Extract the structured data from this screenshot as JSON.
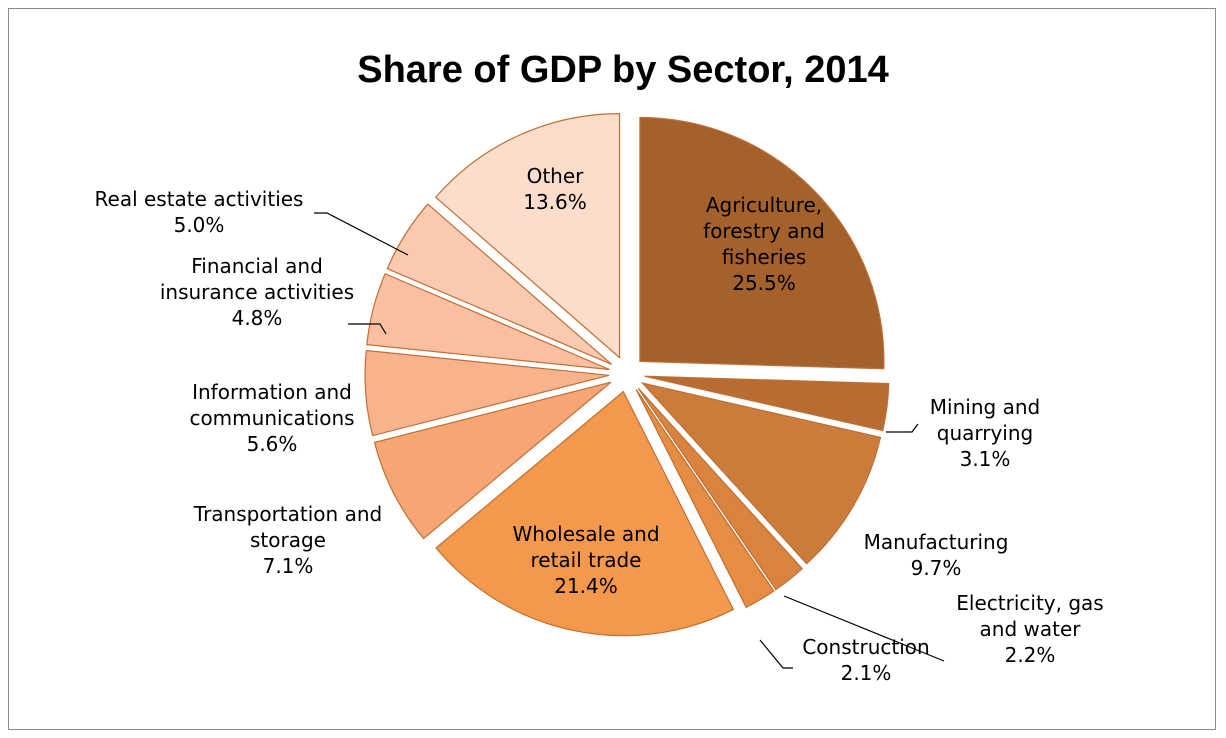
{
  "chart_data": {
    "type": "pie",
    "title": "Share of GDP by Sector, 2014",
    "slices": [
      {
        "name": "Agriculture, forestry and fisheries",
        "value": 25.5,
        "pct_label": "25.5%",
        "label_lines": [
          "Agriculture,",
          "forestry and",
          "fisheries"
        ],
        "color": "#a5612b"
      },
      {
        "name": "Mining and quarrying",
        "value": 3.1,
        "pct_label": "3.1%",
        "label_lines": [
          "Mining and",
          "quarrying"
        ],
        "color": "#b86c32"
      },
      {
        "name": "Manufacturing",
        "value": 9.7,
        "pct_label": "9.7%",
        "label_lines": [
          "Manufacturing"
        ],
        "color": "#cb7b3a"
      },
      {
        "name": "Electricity, gas and water",
        "value": 2.2,
        "pct_label": "2.2%",
        "label_lines": [
          "Electricity, gas",
          "and water"
        ],
        "color": "#d8833e"
      },
      {
        "name": "Construction",
        "value": 2.1,
        "pct_label": "2.1%",
        "label_lines": [
          "Construction"
        ],
        "color": "#e58d42"
      },
      {
        "name": "Wholesale and retail trade",
        "value": 21.4,
        "pct_label": "21.4%",
        "label_lines": [
          "Wholesale and",
          "retail trade"
        ],
        "color": "#f4984b"
      },
      {
        "name": "Transportation and storage",
        "value": 7.1,
        "pct_label": "7.1%",
        "label_lines": [
          "Transportation and",
          "storage"
        ],
        "color": "#f7a573"
      },
      {
        "name": "Information and communications",
        "value": 5.6,
        "pct_label": "5.6%",
        "label_lines": [
          "Information and",
          "communications"
        ],
        "color": "#f8b38d"
      },
      {
        "name": "Financial and insurance activities",
        "value": 4.8,
        "pct_label": "4.8%",
        "label_lines": [
          "Financial and",
          "insurance activities"
        ],
        "color": "#f9bfa0"
      },
      {
        "name": "Real estate activities",
        "value": 5.0,
        "pct_label": "5.0%",
        "label_lines": [
          "Real estate activities"
        ],
        "color": "#facab0"
      },
      {
        "name": "Other",
        "value": 13.6,
        "pct_label": "13.6%",
        "label_lines": [
          "Other"
        ],
        "color": "#fcdccb"
      }
    ],
    "legend": "none",
    "data_labels": "category name and percentage",
    "exploded": true
  },
  "colors": {
    "border": "#8a8a8a",
    "slice_outline": "#c06f35",
    "leader_line": "#000000"
  }
}
